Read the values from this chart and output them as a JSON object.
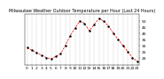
{
  "title": "Milwaukee Weather Outdoor Temperature per Hour (Last 24 Hours)",
  "hours": [
    0,
    1,
    2,
    3,
    4,
    5,
    6,
    7,
    8,
    9,
    10,
    11,
    12,
    13,
    14,
    15,
    16,
    17,
    18,
    19,
    20,
    21,
    22,
    23
  ],
  "temps": [
    28,
    26,
    24,
    22,
    20,
    19,
    21,
    23,
    30,
    38,
    44,
    50,
    48,
    42,
    47,
    52,
    50,
    46,
    40,
    35,
    30,
    25,
    20,
    17
  ],
  "line_color": "#dd0000",
  "marker_color": "#000000",
  "bg_color": "#ffffff",
  "grid_color": "#888888",
  "ylim": [
    14,
    56
  ],
  "yticks": [
    20,
    25,
    30,
    35,
    40,
    45,
    50
  ],
  "xlabel_fontsize": 3.2,
  "ylabel_fontsize": 3.2,
  "title_fontsize": 3.5,
  "tick_labels": [
    "0",
    "1",
    "2",
    "3",
    "4",
    "5",
    "6",
    "7",
    "8",
    "9",
    "10",
    "11",
    "12",
    "13",
    "14",
    "15",
    "16",
    "17",
    "18",
    "19",
    "20",
    "21",
    "22",
    "23"
  ]
}
